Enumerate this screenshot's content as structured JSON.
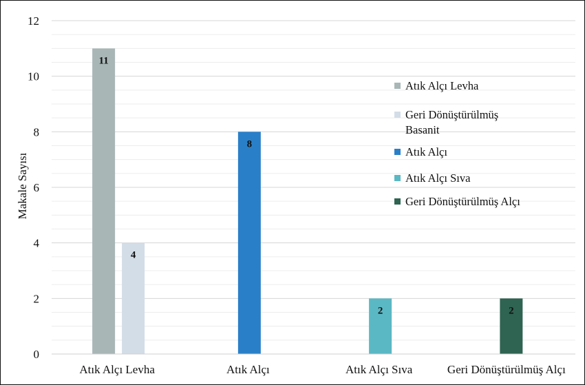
{
  "chart_data": {
    "type": "bar",
    "title": "",
    "xlabel": "",
    "ylabel": "Makale Sayısı",
    "ylim": [
      0,
      12
    ],
    "yticks": [
      0,
      2,
      4,
      6,
      8,
      10,
      12
    ],
    "minor_grid_step": 0.5,
    "categories": [
      "Atık Alçı Levha",
      "Atık Alçı",
      "Atık Alçı Sıva",
      "Geri Dönüştürülmüş Alçı"
    ],
    "series": [
      {
        "name": "Atık Alçı Levha",
        "color": "#a9b6b6",
        "values": [
          11,
          null,
          null,
          null
        ]
      },
      {
        "name": "Geri Dönüştürülmüş Basanit",
        "color": "#d2dde7",
        "values": [
          4,
          null,
          null,
          null
        ]
      },
      {
        "name": "Atık Alçı",
        "color": "#2a80c8",
        "values": [
          null,
          8,
          null,
          null
        ]
      },
      {
        "name": "Atık Alçı Sıva",
        "color": "#5ab8c4",
        "values": [
          null,
          null,
          2,
          null
        ]
      },
      {
        "name": "Geri Dönüştürülmüş Alçı",
        "color": "#2f6352",
        "values": [
          null,
          null,
          null,
          2
        ]
      }
    ],
    "legend_position": "right",
    "grid": true
  }
}
